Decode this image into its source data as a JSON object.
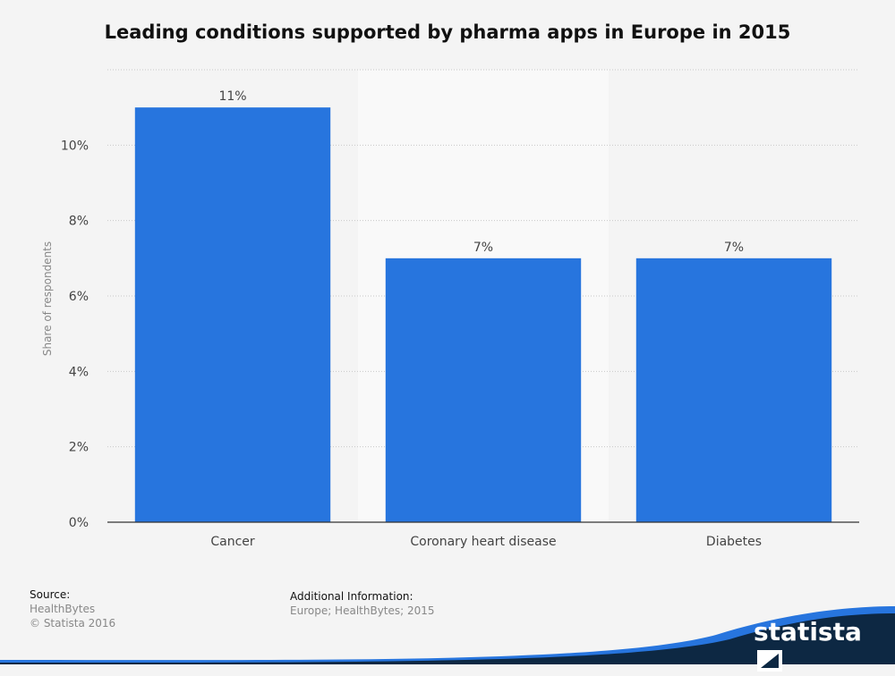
{
  "chart_data": {
    "type": "bar",
    "title": "Leading conditions supported by pharma apps in Europe in 2015",
    "categories": [
      "Cancer",
      "Coronary heart disease",
      "Diabetes"
    ],
    "values": [
      11,
      7,
      7
    ],
    "value_labels": [
      "11%",
      "7%",
      "7%"
    ],
    "ylabel": "Share of respondents",
    "ylim": [
      0,
      12
    ],
    "yticks": [
      0,
      2,
      4,
      6,
      8,
      10
    ],
    "ytick_labels": [
      "0%",
      "2%",
      "4%",
      "6%",
      "8%",
      "10%"
    ],
    "grid": true,
    "bar_color": "#2775de"
  },
  "footer": {
    "source_label": "Source:",
    "source_text": "HealthBytes",
    "copyright": "© Statista 2016",
    "additional_label": "Additional Information:",
    "additional_text": "Europe; HealthBytes; 2015"
  },
  "brand": {
    "name": "statista",
    "wave_color": "#2775de",
    "dark_color": "#0d2843"
  }
}
